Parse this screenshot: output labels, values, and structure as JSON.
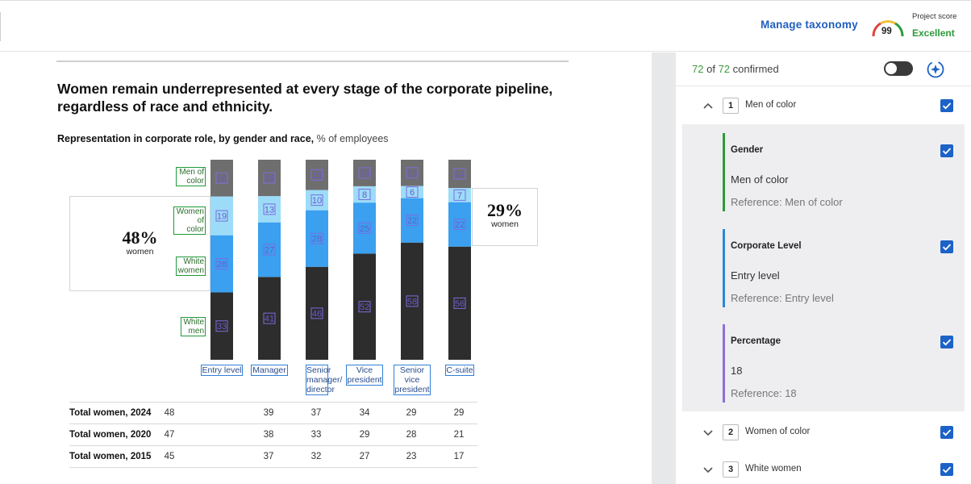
{
  "header": {
    "manage_taxonomy": "Manage taxonomy",
    "project_score_label": "Project score",
    "project_score_value": "99",
    "project_score_grade": "Excellent"
  },
  "document": {
    "headline": "Women remain underrepresented at every stage of the corporate pipeline, regardless of race and ethnicity.",
    "subhead_bold": "Representation in corporate role, by gender and race,",
    "subhead_unit": "% of employees",
    "callout_left": {
      "value": "48%",
      "label": "women"
    },
    "callout_right": {
      "value": "29%",
      "label": "women"
    },
    "table": {
      "rows": [
        {
          "label": "Total women, 2024",
          "values": [
            "48",
            "39",
            "37",
            "34",
            "29",
            "29"
          ]
        },
        {
          "label": "Total women, 2020",
          "values": [
            "47",
            "38",
            "33",
            "29",
            "28",
            "21"
          ]
        },
        {
          "label": "Total women, 2015",
          "values": [
            "45",
            "37",
            "32",
            "27",
            "23",
            "17"
          ]
        }
      ]
    }
  },
  "chart_data": {
    "type": "bar",
    "stacked": true,
    "categories": [
      "Entry level",
      "Manager",
      "Senior manager/ director",
      "Vice president",
      "Senior vice president",
      "C-suite"
    ],
    "series": [
      {
        "name": "Men of color",
        "color": "#6e6e6e",
        "values": [
          18,
          18,
          15,
          13,
          13,
          14
        ]
      },
      {
        "name": "Women of color",
        "color": "#9ddcf8",
        "values": [
          19,
          13,
          10,
          8,
          6,
          7
        ]
      },
      {
        "name": "White women",
        "color": "#3aa0ef",
        "values": [
          28,
          27,
          28,
          25,
          22,
          22
        ]
      },
      {
        "name": "White men",
        "color": "#2d2d2d",
        "values": [
          33,
          41,
          46,
          52,
          58,
          56
        ]
      }
    ],
    "ylim": [
      0,
      100
    ]
  },
  "panel": {
    "confirmed_count": "72",
    "confirmed_of": "of",
    "confirmed_total": "72",
    "confirmed_label": "confirmed",
    "groups": [
      {
        "num": "1",
        "name": "Men of color",
        "expanded": true
      },
      {
        "num": "2",
        "name": "Women of color",
        "expanded": false
      },
      {
        "num": "3",
        "name": "White women",
        "expanded": false
      }
    ],
    "fields": [
      {
        "name": "Gender",
        "value": "Men of color",
        "reference": "Reference: Men of color",
        "color": "#2e9a3a"
      },
      {
        "name": "Corporate Level",
        "value": "Entry level",
        "reference": "Reference: Entry level",
        "color": "#2e87d6"
      },
      {
        "name": "Percentage",
        "value": "18",
        "reference": "Reference: 18",
        "color": "#8d6fd9"
      }
    ]
  }
}
